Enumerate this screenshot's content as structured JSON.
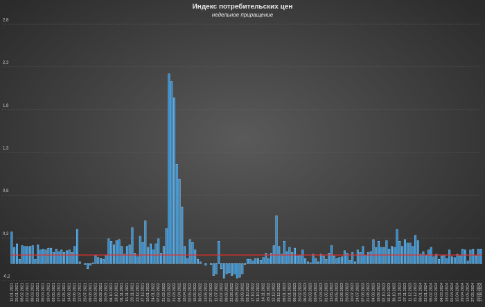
{
  "chart_data": {
    "type": "bar",
    "title": "Индекс потребительских цен",
    "subtitle": "недельное приращение",
    "categories": [
      "11.01.2021",
      null,
      "25.01.2021",
      null,
      "08.02.2021",
      null,
      "22.02.2021",
      null,
      "08.03.2021",
      null,
      "22.03.2021",
      null,
      "05.04.2021",
      null,
      "19.04.2021",
      null,
      "03.05.2021",
      null,
      "17.05.2021",
      null,
      "31.05.2021",
      null,
      "14.06.2021",
      null,
      "28.06.2021",
      null,
      "12.07.2021",
      null,
      "26.07.2021",
      null,
      "09.08.2021",
      null,
      "23.08.2021",
      null,
      "06.09.2021",
      null,
      "20.09.2021",
      null,
      "04.10.2021",
      null,
      "18.10.2021",
      null,
      "01.11.2021",
      null,
      "15.11.2021",
      null,
      "29.11.2021",
      null,
      "13.12.2021",
      null,
      "27.12.2021",
      null,
      "10.01.2022",
      null,
      "24.01.2022",
      null,
      "07.02.2022",
      null,
      "21.02.2022",
      null,
      "07.03.2022",
      null,
      "21.03.2022",
      null,
      "04.04.2022",
      null,
      "18.04.2022",
      null,
      "02.05.2022",
      null,
      "16.05.2022",
      null,
      "30.05.2022",
      null,
      "13.06.2022",
      null,
      "27.06.2022",
      null,
      "11.07.2022",
      null,
      "25.07.2022",
      null,
      "08.08.2022",
      null,
      "22.08.2022",
      null,
      "05.09.2022",
      null,
      "19.09.2022",
      null,
      "03.10.2022",
      null,
      "17.10.2022",
      null,
      "31.10.2022",
      null,
      "14.11.2022",
      null,
      "28.11.2022",
      null,
      "12.12.2022",
      null,
      "26.12.2022",
      null,
      "09.01.2023",
      null,
      "23.01.2023",
      null,
      "06.02.2023",
      null,
      "20.02.2023",
      null,
      "06.03.2023",
      null,
      "20.03.2023",
      null,
      "03.04.2023",
      null,
      "17.04.2023",
      null,
      "01.05.2023",
      null,
      "15.05.2023",
      null,
      "29.05.2023",
      null,
      "12.06.2023",
      null,
      "26.06.2023",
      null,
      "10.07.2023",
      null,
      "24.07.2023",
      null,
      "07.08.2023",
      null,
      "21.08.2023",
      null,
      "04.09.2023",
      null,
      "18.09.2023",
      null,
      "02.10.2023",
      null,
      "16.10.2023",
      null,
      "30.10.2023",
      null,
      "13.11.2023",
      null,
      "27.11.2023",
      null,
      "11.12.2023",
      null,
      "25.12.2023",
      null,
      "08.01.2024",
      null,
      "22.01.2024",
      null,
      "05.02.2024",
      null,
      "19.02.2024",
      null,
      "04.03.2024",
      null,
      "18.03.2024",
      null,
      "01.04.2024",
      null,
      "15.04.2024",
      null,
      "29.04.2024",
      null,
      "13.05.2024",
      null,
      "27.05.2024",
      null,
      "10.06.2024",
      "17.06.2024"
    ],
    "values": [
      0.37,
      0.19,
      0.23,
      0.05,
      0.21,
      0.2,
      0.2,
      0.2,
      0.21,
      0.05,
      0.22,
      0.16,
      0.17,
      0.16,
      0.18,
      0.18,
      0.13,
      0.17,
      0.14,
      0.16,
      0.13,
      0.15,
      0.16,
      0.13,
      0.2,
      0.4,
      0.02,
      0.0,
      -0.01,
      -0.06,
      -0.02,
      0.01,
      0.1,
      0.07,
      0.06,
      0.05,
      0.1,
      0.29,
      0.26,
      0.22,
      0.27,
      0.28,
      0.2,
      0.11,
      0.2,
      0.22,
      0.42,
      0.12,
      0.08,
      0.32,
      0.25,
      0.5,
      0.19,
      0.23,
      0.16,
      0.23,
      0.29,
      0.12,
      0.2,
      0.41,
      2.22,
      2.13,
      1.94,
      1.16,
      0.99,
      0.66,
      0.2,
      0.06,
      0.28,
      0.25,
      0.16,
      0.05,
      0.02,
      0.0,
      -0.02,
      0.0,
      -0.01,
      -0.14,
      -0.12,
      0.26,
      -0.06,
      -0.17,
      -0.12,
      -0.11,
      -0.14,
      -0.12,
      -0.17,
      -0.16,
      -0.12,
      -0.01,
      0.05,
      0.05,
      0.03,
      0.06,
      0.06,
      0.04,
      0.07,
      0.12,
      0.06,
      0.12,
      0.21,
      0.56,
      0.2,
      0.11,
      0.26,
      0.14,
      0.19,
      0.13,
      0.18,
      0.09,
      0.1,
      0.16,
      0.06,
      0.02,
      0.01,
      0.11,
      0.06,
      0.02,
      0.11,
      0.09,
      0.05,
      0.12,
      0.21,
      0.09,
      0.06,
      0.07,
      0.08,
      0.15,
      0.12,
      0.04,
      0.13,
      0.02,
      0.16,
      0.13,
      0.2,
      0.1,
      0.13,
      0.14,
      0.28,
      0.19,
      0.26,
      0.19,
      0.19,
      0.27,
      0.17,
      0.2,
      0.19,
      0.4,
      0.26,
      0.2,
      0.28,
      0.24,
      0.24,
      0.2,
      0.33,
      0.27,
      0.11,
      0.14,
      0.1,
      0.16,
      0.19,
      0.08,
      0.11,
      0.05,
      0.09,
      0.1,
      0.06,
      0.16,
      0.08,
      0.07,
      0.11,
      0.09,
      0.17,
      0.16,
      0.03,
      0.16,
      0.17,
      0.09,
      0.17,
      0.17
    ],
    "color": "#2a8ad0",
    "edge_color": "#9cd4f7",
    "reference_line": 0.1,
    "reference_color": "#e0302c",
    "ylim": [
      -0.2,
      2.8
    ],
    "yticks": [
      {
        "value": -0.2,
        "label": "-0,2"
      },
      {
        "value": 0.3,
        "label": "0,3"
      },
      {
        "value": 0.8,
        "label": "0,8"
      },
      {
        "value": 1.3,
        "label": "1,3"
      },
      {
        "value": 1.8,
        "label": "1,8"
      },
      {
        "value": 2.3,
        "label": "2,3"
      },
      {
        "value": 2.8,
        "label": "2,8"
      }
    ],
    "grid": true
  }
}
